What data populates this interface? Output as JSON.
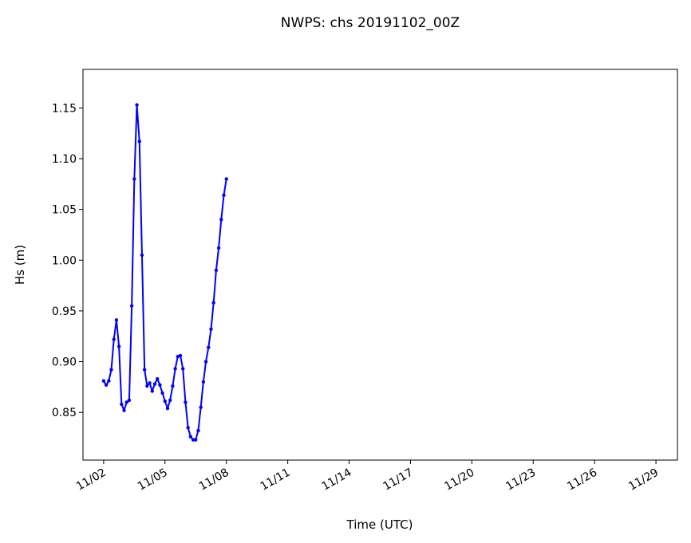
{
  "chart_data": {
    "type": "line",
    "title": "NWPS: chs 20191102_00Z",
    "xlabel": "Time (UTC)",
    "ylabel": "Hs (m)",
    "color": "#0000ff",
    "x": [
      2,
      2.125,
      2.25,
      2.375,
      2.5,
      2.625,
      2.75,
      2.875,
      3,
      3.125,
      3.25,
      3.375,
      3.5,
      3.625,
      3.75,
      3.875,
      4,
      4.125,
      4.25,
      4.375,
      4.5,
      4.625,
      4.75,
      4.875,
      5,
      5.125,
      5.25,
      5.375,
      5.5,
      5.625,
      5.75,
      5.875,
      6,
      6.125,
      6.25,
      6.375,
      6.5,
      6.625,
      6.75,
      6.875,
      7,
      7.125,
      7.25,
      7.375,
      7.5,
      7.625,
      7.75,
      7.875,
      8
    ],
    "values": [
      0.881,
      0.877,
      0.881,
      0.892,
      0.922,
      0.941,
      0.915,
      0.858,
      0.852,
      0.86,
      0.862,
      0.955,
      1.08,
      1.153,
      1.117,
      1.005,
      0.892,
      0.876,
      0.879,
      0.871,
      0.878,
      0.883,
      0.877,
      0.869,
      0.861,
      0.854,
      0.862,
      0.876,
      0.893,
      0.905,
      0.906,
      0.893,
      0.86,
      0.835,
      0.826,
      0.823,
      0.823,
      0.832,
      0.855,
      0.88,
      0.9,
      0.914,
      0.932,
      0.958,
      0.99,
      1.012,
      1.04,
      1.064,
      1.08
    ],
    "xlim": [
      0.99,
      30.05
    ],
    "xticks": [
      {
        "value": 2,
        "label": "11/02"
      },
      {
        "value": 5,
        "label": "11/05"
      },
      {
        "value": 8,
        "label": "11/08"
      },
      {
        "value": 11,
        "label": "11/11"
      },
      {
        "value": 14,
        "label": "11/14"
      },
      {
        "value": 17,
        "label": "11/17"
      },
      {
        "value": 20,
        "label": "11/20"
      },
      {
        "value": 23,
        "label": "11/23"
      },
      {
        "value": 26,
        "label": "11/26"
      },
      {
        "value": 29,
        "label": "11/29"
      }
    ],
    "ylim": [
      0.803,
      1.188
    ],
    "yticks": [
      {
        "value": 0.85,
        "label": "0.85"
      },
      {
        "value": 0.9,
        "label": "0.90"
      },
      {
        "value": 0.95,
        "label": "0.95"
      },
      {
        "value": 1.0,
        "label": "1.00"
      },
      {
        "value": 1.05,
        "label": "1.05"
      },
      {
        "value": 1.1,
        "label": "1.10"
      },
      {
        "value": 1.15,
        "label": "1.15"
      }
    ]
  }
}
